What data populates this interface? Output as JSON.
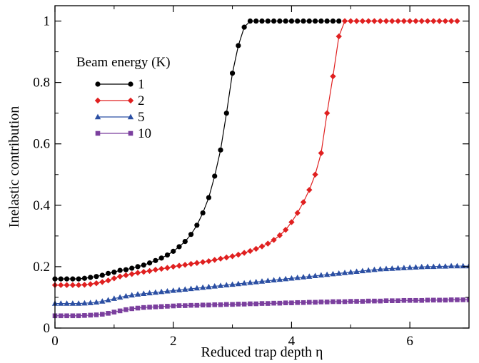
{
  "chart_data": {
    "type": "line",
    "xlabel": "Reduced trap depth η",
    "ylabel": "Inelastic contribution",
    "xlim": [
      0,
      7
    ],
    "ylim": [
      0,
      1.05
    ],
    "xticks": [
      0,
      2,
      4,
      6
    ],
    "yticks": [
      0,
      0.2,
      0.4,
      0.6,
      0.8,
      1
    ],
    "xtick_labels": [
      "0",
      "2",
      "4",
      "6"
    ],
    "ytick_labels": [
      "0",
      "0.2",
      "0.4",
      "0.6",
      "0.8",
      "1"
    ],
    "grid": false,
    "legend": {
      "title": "Beam energy (K)",
      "placement": "upper-left"
    },
    "series": [
      {
        "name": "1",
        "color": "#000000",
        "marker": "circle",
        "x": [
          0,
          0.1,
          0.2,
          0.3,
          0.4,
          0.5,
          0.6,
          0.7,
          0.8,
          0.9,
          1.0,
          1.1,
          1.2,
          1.3,
          1.4,
          1.5,
          1.6,
          1.7,
          1.8,
          1.9,
          2.0,
          2.1,
          2.2,
          2.3,
          2.4,
          2.5,
          2.6,
          2.7,
          2.8,
          2.9,
          3.0,
          3.1,
          3.2,
          3.3,
          3.4,
          3.5,
          3.6,
          3.7,
          3.8,
          3.9,
          4.0,
          4.1,
          4.2,
          4.3,
          4.4,
          4.5,
          4.6,
          4.7,
          4.8
        ],
        "y": [
          0.16,
          0.16,
          0.16,
          0.16,
          0.16,
          0.162,
          0.165,
          0.168,
          0.172,
          0.178,
          0.182,
          0.188,
          0.19,
          0.195,
          0.2,
          0.205,
          0.212,
          0.22,
          0.228,
          0.238,
          0.25,
          0.265,
          0.282,
          0.305,
          0.335,
          0.375,
          0.425,
          0.495,
          0.58,
          0.7,
          0.83,
          0.92,
          0.98,
          1,
          1,
          1,
          1,
          1,
          1,
          1,
          1,
          1,
          1,
          1,
          1,
          1,
          1,
          1,
          1
        ]
      },
      {
        "name": "2",
        "color": "#e02020",
        "marker": "diamond",
        "x": [
          0,
          0.1,
          0.2,
          0.3,
          0.4,
          0.5,
          0.6,
          0.7,
          0.8,
          0.9,
          1.0,
          1.1,
          1.2,
          1.3,
          1.4,
          1.5,
          1.6,
          1.7,
          1.8,
          1.9,
          2.0,
          2.1,
          2.2,
          2.3,
          2.4,
          2.5,
          2.6,
          2.7,
          2.8,
          2.9,
          3.0,
          3.1,
          3.2,
          3.3,
          3.4,
          3.5,
          3.6,
          3.7,
          3.8,
          3.9,
          4.0,
          4.1,
          4.2,
          4.3,
          4.4,
          4.5,
          4.6,
          4.7,
          4.8,
          4.9,
          5.0,
          5.1,
          5.2,
          5.3,
          5.4,
          5.5,
          5.6,
          5.7,
          5.8,
          5.9,
          6.0,
          6.1,
          6.2,
          6.3,
          6.4,
          6.5,
          6.6,
          6.7,
          6.8
        ],
        "y": [
          0.14,
          0.14,
          0.14,
          0.14,
          0.14,
          0.141,
          0.143,
          0.146,
          0.15,
          0.155,
          0.162,
          0.168,
          0.172,
          0.176,
          0.18,
          0.183,
          0.186,
          0.19,
          0.193,
          0.196,
          0.2,
          0.203,
          0.206,
          0.209,
          0.212,
          0.215,
          0.218,
          0.222,
          0.226,
          0.23,
          0.234,
          0.239,
          0.245,
          0.251,
          0.258,
          0.266,
          0.275,
          0.287,
          0.302,
          0.32,
          0.345,
          0.375,
          0.41,
          0.45,
          0.5,
          0.57,
          0.7,
          0.82,
          0.95,
          1,
          1,
          1,
          1,
          1,
          1,
          1,
          1,
          1,
          1,
          1,
          1,
          1,
          1,
          1,
          1,
          1,
          1,
          1,
          1
        ]
      },
      {
        "name": "5",
        "color": "#2b4fa3",
        "marker": "triangle",
        "x": [
          0,
          0.1,
          0.2,
          0.3,
          0.4,
          0.5,
          0.6,
          0.7,
          0.8,
          0.9,
          1.0,
          1.1,
          1.2,
          1.3,
          1.4,
          1.5,
          1.6,
          1.7,
          1.8,
          1.9,
          2.0,
          2.1,
          2.2,
          2.3,
          2.4,
          2.5,
          2.6,
          2.7,
          2.8,
          2.9,
          3.0,
          3.1,
          3.2,
          3.3,
          3.4,
          3.5,
          3.6,
          3.7,
          3.8,
          3.9,
          4.0,
          4.1,
          4.2,
          4.3,
          4.4,
          4.5,
          4.6,
          4.7,
          4.8,
          4.9,
          5.0,
          5.1,
          5.2,
          5.3,
          5.4,
          5.5,
          5.6,
          5.7,
          5.8,
          5.9,
          6.0,
          6.1,
          6.2,
          6.3,
          6.4,
          6.5,
          6.6,
          6.7,
          6.8,
          6.9,
          7.0
        ],
        "y": [
          0.08,
          0.08,
          0.08,
          0.08,
          0.08,
          0.081,
          0.082,
          0.084,
          0.087,
          0.091,
          0.096,
          0.1,
          0.104,
          0.107,
          0.11,
          0.112,
          0.114,
          0.116,
          0.118,
          0.12,
          0.122,
          0.124,
          0.126,
          0.128,
          0.13,
          0.132,
          0.134,
          0.136,
          0.138,
          0.14,
          0.142,
          0.144,
          0.146,
          0.148,
          0.15,
          0.152,
          0.154,
          0.156,
          0.158,
          0.16,
          0.162,
          0.164,
          0.166,
          0.168,
          0.17,
          0.172,
          0.174,
          0.176,
          0.178,
          0.18,
          0.182,
          0.184,
          0.186,
          0.188,
          0.19,
          0.192,
          0.193,
          0.194,
          0.195,
          0.196,
          0.197,
          0.198,
          0.199,
          0.2,
          0.2,
          0.201,
          0.201,
          0.202,
          0.202,
          0.202,
          0.202
        ]
      },
      {
        "name": "10",
        "color": "#7b3f9e",
        "marker": "square",
        "x": [
          0,
          0.1,
          0.2,
          0.3,
          0.4,
          0.5,
          0.6,
          0.7,
          0.8,
          0.9,
          1.0,
          1.1,
          1.2,
          1.3,
          1.4,
          1.5,
          1.6,
          1.7,
          1.8,
          1.9,
          2.0,
          2.1,
          2.2,
          2.3,
          2.4,
          2.5,
          2.6,
          2.7,
          2.8,
          2.9,
          3.0,
          3.1,
          3.2,
          3.3,
          3.4,
          3.5,
          3.6,
          3.7,
          3.8,
          3.9,
          4.0,
          4.1,
          4.2,
          4.3,
          4.4,
          4.5,
          4.6,
          4.7,
          4.8,
          4.9,
          5.0,
          5.1,
          5.2,
          5.3,
          5.4,
          5.5,
          5.6,
          5.7,
          5.8,
          5.9,
          6.0,
          6.1,
          6.2,
          6.3,
          6.4,
          6.5,
          6.6,
          6.7,
          6.8,
          6.9,
          7.0
        ],
        "y": [
          0.04,
          0.04,
          0.04,
          0.04,
          0.04,
          0.041,
          0.042,
          0.043,
          0.045,
          0.048,
          0.052,
          0.056,
          0.06,
          0.063,
          0.065,
          0.067,
          0.068,
          0.069,
          0.07,
          0.071,
          0.072,
          0.073,
          0.073,
          0.074,
          0.074,
          0.075,
          0.075,
          0.076,
          0.076,
          0.077,
          0.077,
          0.078,
          0.078,
          0.079,
          0.079,
          0.08,
          0.08,
          0.081,
          0.081,
          0.082,
          0.082,
          0.083,
          0.083,
          0.084,
          0.084,
          0.085,
          0.085,
          0.086,
          0.086,
          0.086,
          0.087,
          0.087,
          0.087,
          0.088,
          0.088,
          0.088,
          0.089,
          0.089,
          0.089,
          0.09,
          0.09,
          0.09,
          0.09,
          0.091,
          0.091,
          0.091,
          0.091,
          0.092,
          0.092,
          0.092,
          0.092
        ]
      }
    ]
  }
}
